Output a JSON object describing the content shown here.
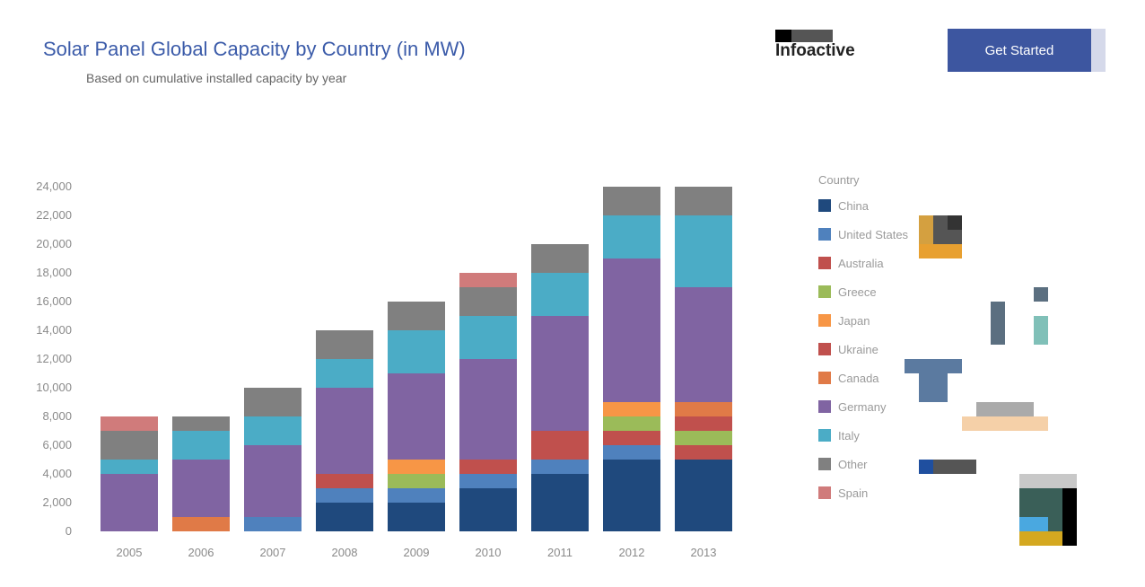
{
  "header": {
    "title": "Solar Panel Global Capacity by Country (in MW)",
    "subtitle": "Based on cumulative installed capacity by year"
  },
  "brand": {
    "name": "Infoactive",
    "button_label": "Get Started"
  },
  "chart_data": {
    "type": "bar",
    "stacked": true,
    "categories": [
      "2005",
      "2006",
      "2007",
      "2008",
      "2009",
      "2010",
      "2011",
      "2012",
      "2013"
    ],
    "ylim": [
      0,
      24000
    ],
    "yticks": [
      0,
      2000,
      4000,
      6000,
      8000,
      10000,
      12000,
      14000,
      16000,
      18000,
      20000,
      22000,
      24000
    ],
    "ylabel": "",
    "xlabel": "",
    "legend": {
      "title": "Country",
      "position": "right"
    },
    "series": [
      {
        "name": "China",
        "color": "#1f497d",
        "values": [
          0,
          0,
          0,
          2000,
          2000,
          3000,
          4000,
          5000,
          5000
        ]
      },
      {
        "name": "United States",
        "color": "#4f81bd",
        "values": [
          0,
          0,
          1000,
          1000,
          1000,
          1000,
          1000,
          1000,
          0
        ]
      },
      {
        "name": "Australia",
        "color": "#c0504d",
        "values": [
          0,
          0,
          0,
          1000,
          0,
          1000,
          2000,
          1000,
          1000
        ]
      },
      {
        "name": "Greece",
        "color": "#9bbb59",
        "values": [
          0,
          0,
          0,
          0,
          1000,
          0,
          0,
          1000,
          1000
        ]
      },
      {
        "name": "Japan",
        "color": "#f79646",
        "values": [
          0,
          0,
          0,
          0,
          1000,
          0,
          0,
          1000,
          0
        ]
      },
      {
        "name": "Ukraine",
        "color": "#c0504d",
        "values": [
          0,
          0,
          0,
          0,
          0,
          0,
          0,
          0,
          1000
        ]
      },
      {
        "name": "Canada",
        "color": "#e07a47",
        "values": [
          0,
          1000,
          0,
          0,
          0,
          0,
          0,
          0,
          1000
        ]
      },
      {
        "name": "Germany",
        "color": "#8064a2",
        "values": [
          4000,
          4000,
          5000,
          6000,
          6000,
          7000,
          8000,
          10000,
          8000
        ]
      },
      {
        "name": "Italy",
        "color": "#4bacc6",
        "values": [
          1000,
          2000,
          2000,
          2000,
          3000,
          3000,
          3000,
          3000,
          5000
        ]
      },
      {
        "name": "Other",
        "color": "#808080",
        "values": [
          2000,
          1000,
          2000,
          2000,
          2000,
          2000,
          2000,
          2000,
          2000
        ]
      },
      {
        "name": "Spain",
        "color": "#d07b7b",
        "values": [
          1000,
          0,
          0,
          0,
          0,
          1000,
          0,
          0,
          0
        ]
      }
    ]
  }
}
